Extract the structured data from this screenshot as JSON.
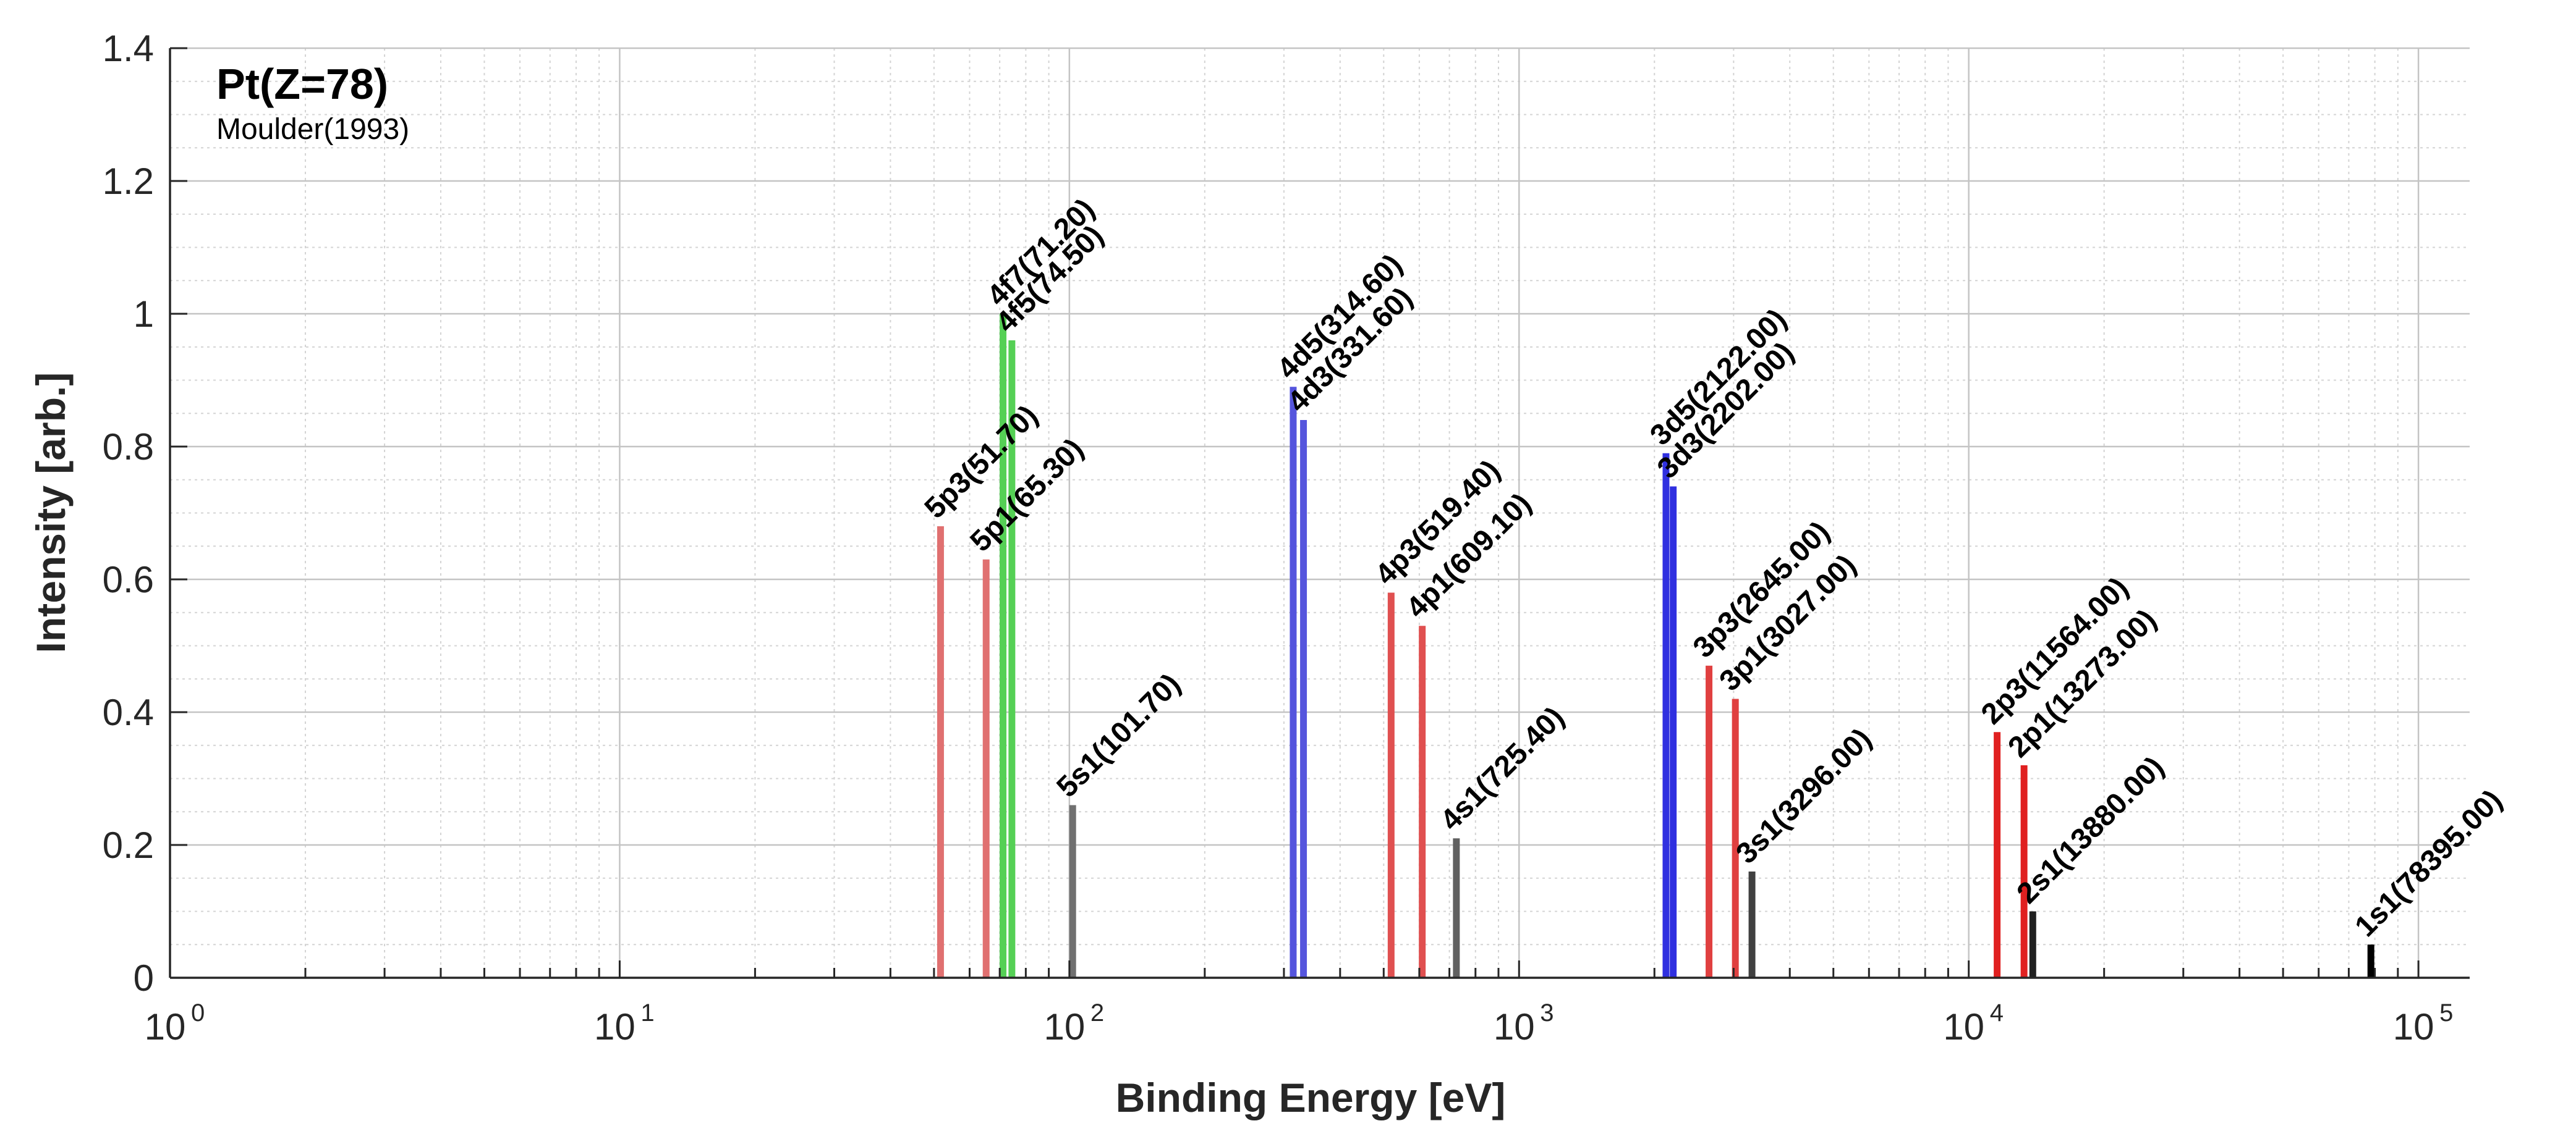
{
  "chart_data": {
    "type": "bar",
    "title": "Pt(Z=78)",
    "subtitle": "Moulder(1993)",
    "xlabel": "Binding Energy [eV]",
    "ylabel": "Intensity [arb.]",
    "x_scale": "log",
    "xlim": [
      1,
      130000
    ],
    "ylim": [
      0,
      1.4
    ],
    "grid": true,
    "x_major_ticks": [
      {
        "value": 1,
        "base": "10",
        "exp": "0"
      },
      {
        "value": 10,
        "base": "10",
        "exp": "1"
      },
      {
        "value": 100,
        "base": "10",
        "exp": "2"
      },
      {
        "value": 1000,
        "base": "10",
        "exp": "3"
      },
      {
        "value": 10000,
        "base": "10",
        "exp": "4"
      },
      {
        "value": 100000,
        "base": "10",
        "exp": "5"
      }
    ],
    "y_ticks": [
      {
        "value": 0,
        "label": "0"
      },
      {
        "value": 0.2,
        "label": "0.2"
      },
      {
        "value": 0.4,
        "label": "0.4"
      },
      {
        "value": 0.6,
        "label": "0.6"
      },
      {
        "value": 0.8,
        "label": "0.8"
      },
      {
        "value": 1.0,
        "label": "1"
      },
      {
        "value": 1.2,
        "label": "1.2"
      },
      {
        "value": 1.4,
        "label": "1.4"
      }
    ],
    "peaks": [
      {
        "label": "5p3(51.70)",
        "x": 51.7,
        "y": 0.68,
        "color": "#e07070"
      },
      {
        "label": "5p1(65.30)",
        "x": 65.3,
        "y": 0.63,
        "color": "#e07070"
      },
      {
        "label": "4f7(71.20)",
        "x": 71.2,
        "y": 1.0,
        "color": "#55d055"
      },
      {
        "label": "4f5(74.50)",
        "x": 74.5,
        "y": 0.96,
        "color": "#55d055"
      },
      {
        "label": "5s1(101.70)",
        "x": 101.7,
        "y": 0.26,
        "color": "#707070"
      },
      {
        "label": "4d5(314.60)",
        "x": 314.6,
        "y": 0.89,
        "color": "#5555dd"
      },
      {
        "label": "4d3(331.60)",
        "x": 331.6,
        "y": 0.84,
        "color": "#5555dd"
      },
      {
        "label": "4p3(519.40)",
        "x": 519.4,
        "y": 0.58,
        "color": "#e05050"
      },
      {
        "label": "4p1(609.10)",
        "x": 609.1,
        "y": 0.53,
        "color": "#e05050"
      },
      {
        "label": "4s1(725.40)",
        "x": 725.4,
        "y": 0.21,
        "color": "#606060"
      },
      {
        "label": "3d5(2122.00)",
        "x": 2122.0,
        "y": 0.79,
        "color": "#3030e0"
      },
      {
        "label": "3d3(2202.00)",
        "x": 2202.0,
        "y": 0.74,
        "color": "#3030e0"
      },
      {
        "label": "3p3(2645.00)",
        "x": 2645.0,
        "y": 0.47,
        "color": "#e04040"
      },
      {
        "label": "3p1(3027.00)",
        "x": 3027.0,
        "y": 0.42,
        "color": "#e04040"
      },
      {
        "label": "3s1(3296.00)",
        "x": 3296.0,
        "y": 0.16,
        "color": "#404040"
      },
      {
        "label": "2p3(11564.00)",
        "x": 11564.0,
        "y": 0.37,
        "color": "#e02020"
      },
      {
        "label": "2p1(13273.00)",
        "x": 13273.0,
        "y": 0.32,
        "color": "#e02020"
      },
      {
        "label": "2s1(13880.00)",
        "x": 13880.0,
        "y": 0.1,
        "color": "#202020"
      },
      {
        "label": "1s1(78395.00)",
        "x": 78395.0,
        "y": 0.05,
        "color": "#000000"
      }
    ]
  }
}
